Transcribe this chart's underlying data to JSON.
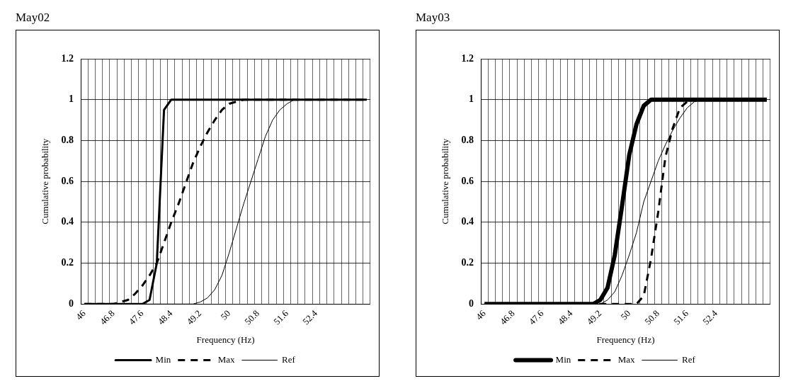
{
  "chart_data": [
    {
      "type": "line",
      "title": "May02",
      "xlabel": "Frequency (Hz)",
      "ylabel": "Cumulative probability",
      "ylim": [
        0,
        1.2
      ],
      "yticks": [
        0,
        0.2,
        0.4,
        0.6,
        0.8,
        1,
        1.2
      ],
      "grid": true,
      "legend": "bottom",
      "marker": "none",
      "categories": [
        "46",
        null,
        null,
        null,
        "46.8",
        null,
        null,
        null,
        "47.6",
        null,
        null,
        null,
        "48.4",
        null,
        null,
        null,
        "49.2",
        null,
        null,
        null,
        "50",
        null,
        null,
        null,
        "50.8",
        null,
        null,
        null,
        "51.6",
        null,
        null,
        null,
        "52.4",
        null,
        null,
        null,
        null,
        null,
        null,
        null
      ],
      "series": [
        {
          "name": "Min",
          "color": "#000000",
          "line_style": "solid",
          "values": [
            0,
            0,
            0,
            0,
            0,
            0,
            0,
            0,
            0,
            0.02,
            0.2,
            0.95,
            1,
            1,
            1,
            1,
            1,
            1,
            1,
            1,
            1,
            1,
            1,
            1,
            1,
            1,
            1,
            1,
            1,
            1,
            1,
            1,
            1,
            1,
            1,
            1,
            1,
            1,
            1,
            1
          ]
        },
        {
          "name": "Max",
          "color": "#000000",
          "line_style": "dashed",
          "values": [
            0,
            0,
            0,
            0,
            0,
            0.01,
            0.02,
            0.05,
            0.09,
            0.14,
            0.2,
            0.3,
            0.4,
            0.49,
            0.59,
            0.69,
            0.77,
            0.84,
            0.9,
            0.95,
            0.98,
            0.99,
            1,
            1,
            1,
            1,
            1,
            1,
            1,
            1,
            1,
            1,
            1,
            1,
            1,
            1,
            1,
            1,
            1,
            1
          ]
        },
        {
          "name": "Ref",
          "color": "#000000",
          "line_style": "solid",
          "values": [
            0,
            0,
            0,
            0,
            0,
            0,
            0,
            0,
            0,
            0,
            0,
            0,
            0,
            0,
            0,
            0,
            0.01,
            0.03,
            0.07,
            0.14,
            0.25,
            0.37,
            0.49,
            0.6,
            0.71,
            0.82,
            0.9,
            0.95,
            0.98,
            1,
            1,
            1,
            1,
            1,
            1,
            1,
            1,
            1,
            1,
            1
          ]
        }
      ]
    },
    {
      "type": "line",
      "title": "May03",
      "xlabel": "Frequency (Hz)",
      "ylabel": "Cumulative probability",
      "ylim": [
        0,
        1.2
      ],
      "yticks": [
        0,
        0.2,
        0.4,
        0.6,
        0.8,
        1,
        1.2
      ],
      "grid": true,
      "legend": "bottom",
      "marker": "none",
      "categories": [
        "46",
        null,
        null,
        null,
        "46.8",
        null,
        null,
        null,
        "47.6",
        null,
        null,
        null,
        "48.4",
        null,
        null,
        null,
        "49.2",
        null,
        null,
        null,
        "50",
        null,
        null,
        null,
        "50.8",
        null,
        null,
        null,
        "51.6",
        null,
        null,
        null,
        "52.4",
        null,
        null,
        null,
        null,
        null,
        null,
        null
      ],
      "series": [
        {
          "name": "Min",
          "color": "#000000",
          "line_style": "solid",
          "values": [
            0,
            0,
            0,
            0,
            0,
            0,
            0,
            0,
            0,
            0,
            0,
            0,
            0,
            0,
            0,
            0,
            0.02,
            0.08,
            0.24,
            0.48,
            0.73,
            0.88,
            0.97,
            1,
            1,
            1,
            1,
            1,
            1,
            1,
            1,
            1,
            1,
            1,
            1,
            1,
            1,
            1,
            1,
            1
          ]
        },
        {
          "name": "Max",
          "color": "#000000",
          "line_style": "dashed",
          "values": [
            0,
            0,
            0,
            0,
            0,
            0,
            0,
            0,
            0,
            0,
            0,
            0,
            0,
            0,
            0,
            0,
            0,
            0,
            0,
            0,
            0,
            0,
            0.04,
            0.22,
            0.45,
            0.72,
            0.86,
            0.96,
            0.99,
            1,
            1,
            1,
            1,
            1,
            1,
            1,
            1,
            1,
            1,
            1
          ]
        },
        {
          "name": "Ref",
          "color": "#000000",
          "line_style": "solid",
          "values": [
            0,
            0,
            0,
            0,
            0,
            0,
            0,
            0,
            0,
            0,
            0,
            0,
            0,
            0,
            0,
            0,
            0,
            0.02,
            0.06,
            0.14,
            0.24,
            0.35,
            0.5,
            0.6,
            0.7,
            0.78,
            0.85,
            0.91,
            0.96,
            0.99,
            1,
            1,
            1,
            1,
            1,
            1,
            1,
            1,
            1,
            1
          ]
        }
      ]
    }
  ]
}
